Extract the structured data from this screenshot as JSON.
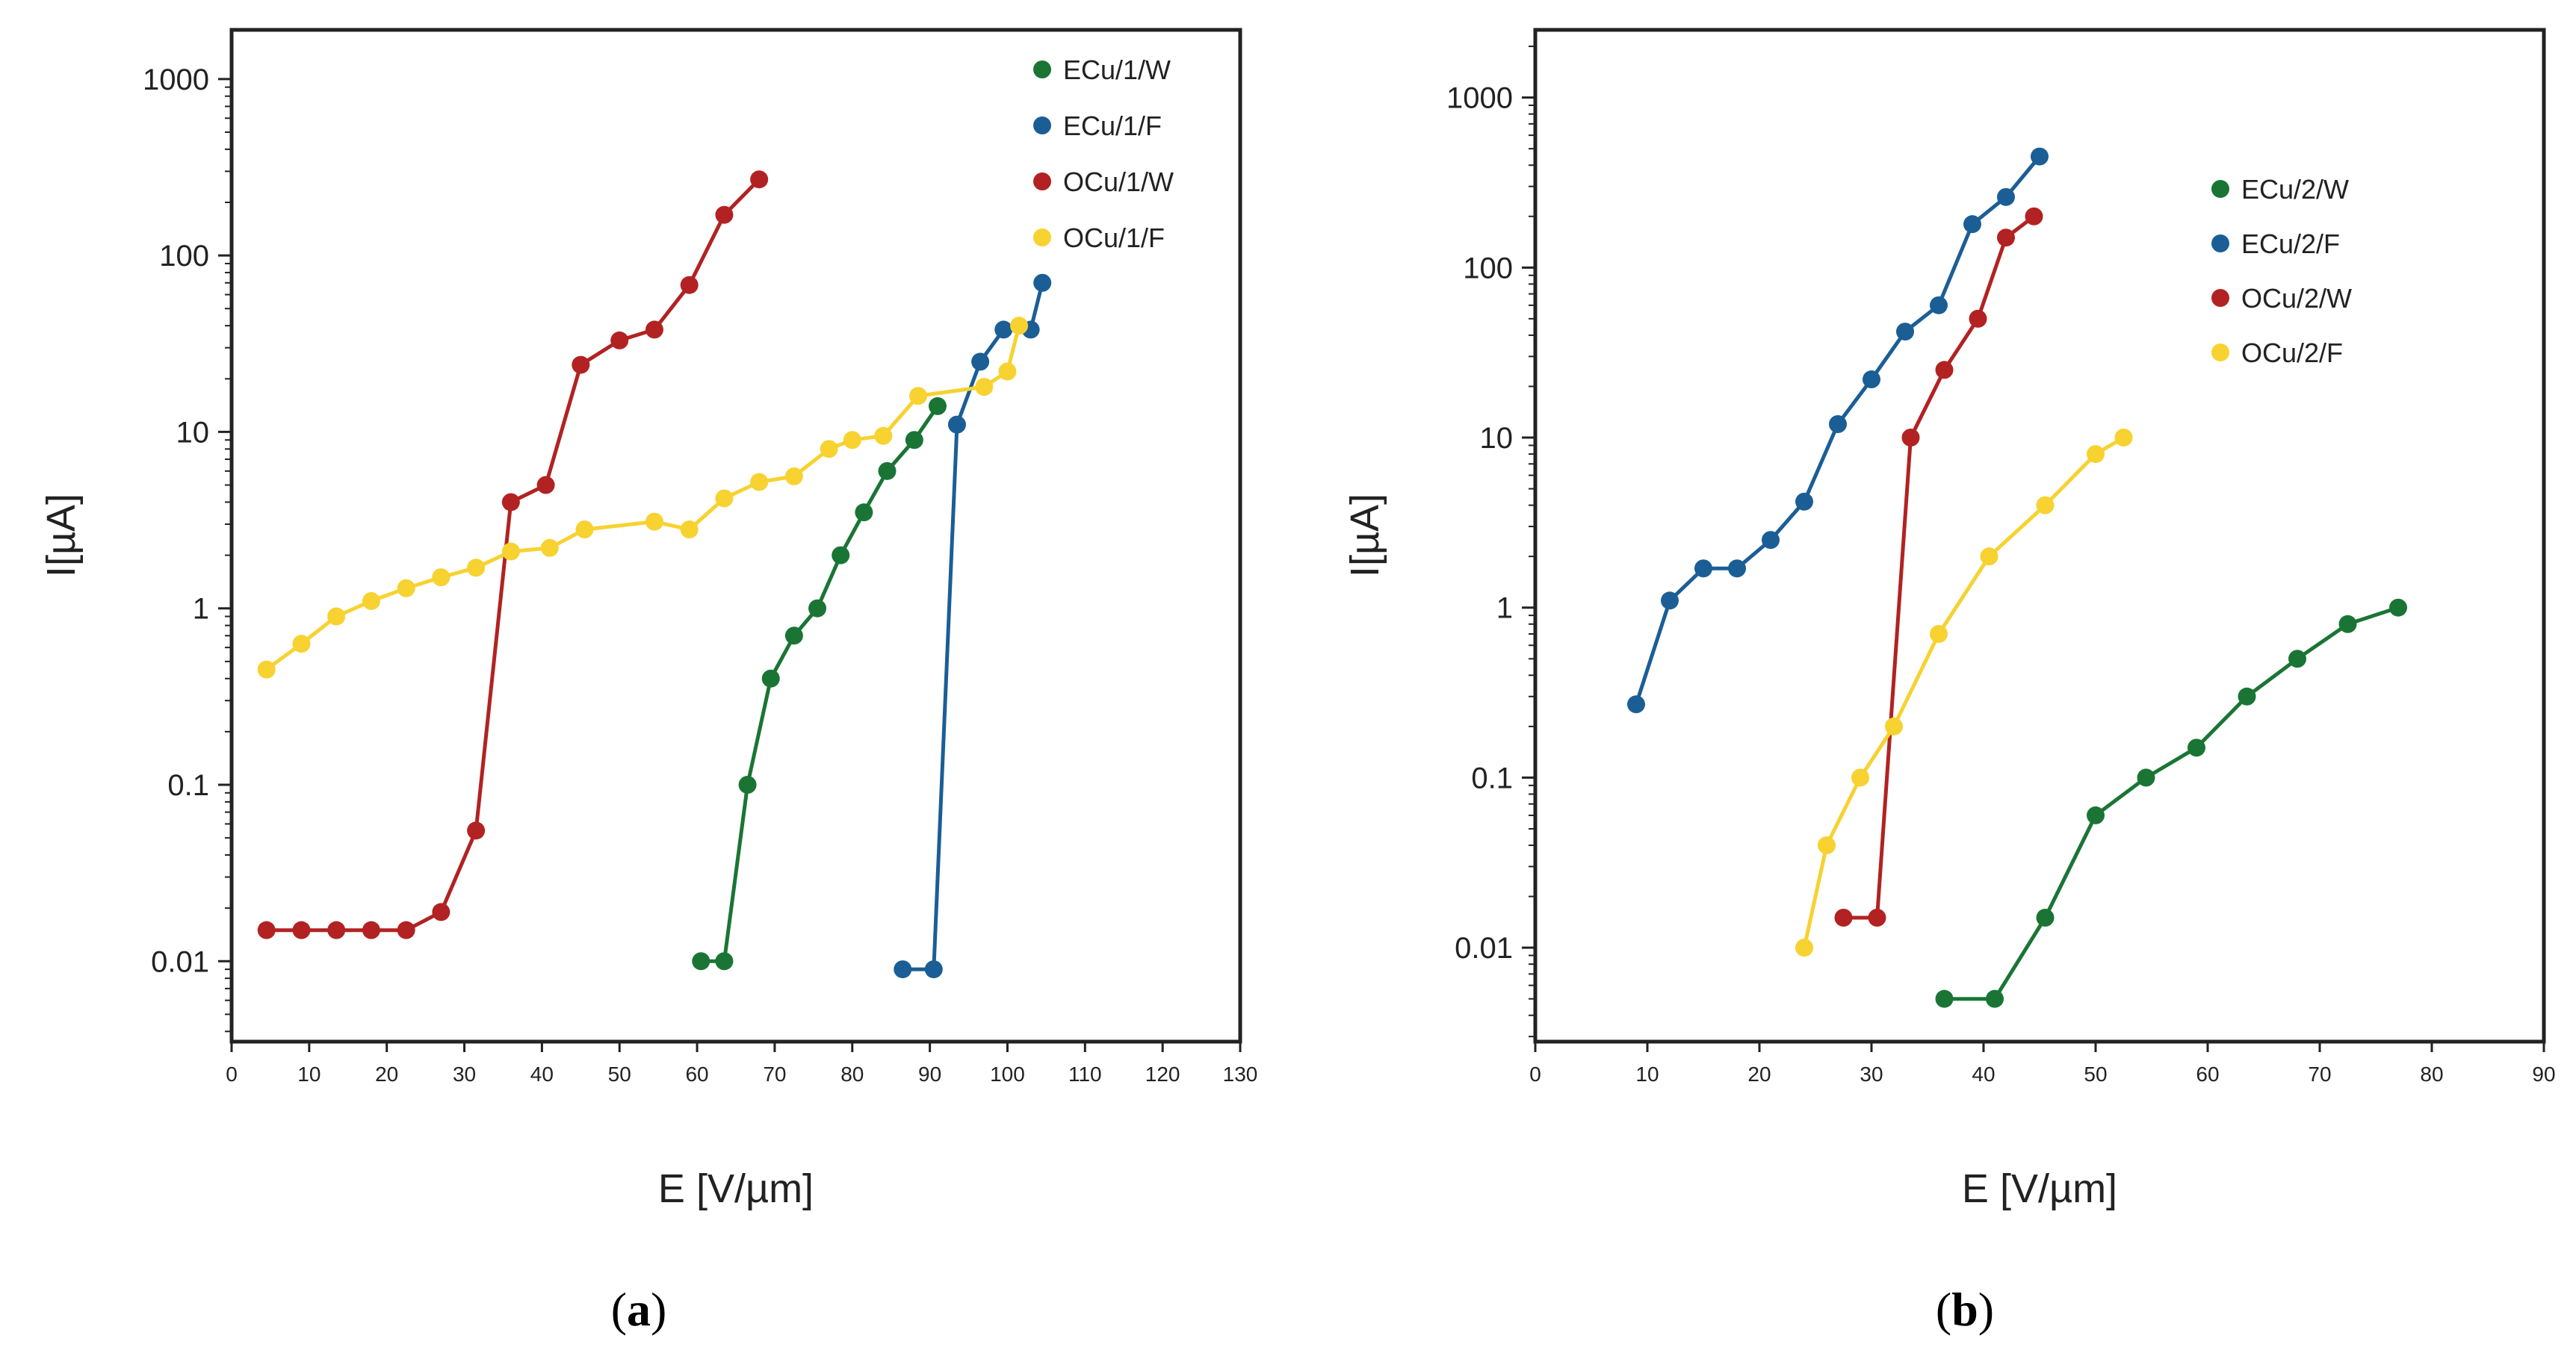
{
  "chart_data": [
    {
      "type": "line",
      "panel_label": "a",
      "xlabel": "E [V/µm]",
      "ylabel": "I[µA]",
      "yscale": "log",
      "xlim": [
        0,
        130
      ],
      "ylim": [
        0.0035,
        1900
      ],
      "xticks": [
        "0",
        "10",
        "20",
        "30",
        "40",
        "50",
        "60",
        "70",
        "80",
        "90",
        "100",
        "110",
        "120",
        "130"
      ],
      "yticks": [
        "0.01",
        "0.1",
        "1",
        "10",
        "100",
        "1000"
      ],
      "legend_position": "top-right",
      "series": [
        {
          "name": "ECu/1/W",
          "color": "#1a7535",
          "x": [
            60.5,
            63.5,
            66.5,
            69.5,
            72.5,
            75.5,
            78.5,
            81.5,
            84.5,
            88,
            91
          ],
          "y": [
            0.01,
            0.01,
            0.1,
            0.4,
            0.7,
            1.0,
            2.0,
            3.5,
            6.0,
            9.0,
            14.0
          ]
        },
        {
          "name": "ECu/1/F",
          "color": "#1b5e96",
          "x": [
            86.5,
            90.5,
            93.5,
            96.5,
            99.5,
            103,
            104.5
          ],
          "y": [
            0.009,
            0.009,
            11,
            25,
            38,
            38,
            70
          ]
        },
        {
          "name": "OCu/1/W",
          "color": "#b22222",
          "x": [
            4.5,
            9,
            13.5,
            18,
            22.5,
            27,
            31.5,
            36,
            40.5,
            45,
            50,
            54.5,
            59,
            63.5,
            68
          ],
          "y": [
            0.015,
            0.015,
            0.015,
            0.015,
            0.015,
            0.019,
            0.055,
            4.0,
            5.0,
            24,
            33,
            38,
            68,
            170,
            270
          ]
        },
        {
          "name": "OCu/1/F",
          "color": "#f7d230",
          "x": [
            4.5,
            9,
            13.5,
            18,
            22.5,
            27,
            31.5,
            36,
            41,
            45.5,
            54.5,
            59,
            63.5,
            68,
            72.5,
            77,
            80,
            84,
            88.5,
            97,
            100,
            101.5
          ],
          "y": [
            0.45,
            0.63,
            0.9,
            1.1,
            1.3,
            1.5,
            1.7,
            2.1,
            2.2,
            2.8,
            3.1,
            2.8,
            4.2,
            5.2,
            5.6,
            8.0,
            9.0,
            9.5,
            16,
            18,
            22,
            40
          ]
        }
      ]
    },
    {
      "type": "line",
      "panel_label": "b",
      "xlabel": "E [V/µm]",
      "ylabel": "I[µA]",
      "yscale": "log",
      "xlim": [
        0,
        90
      ],
      "ylim": [
        0.0028,
        2500
      ],
      "xticks": [
        "0",
        "10",
        "20",
        "30",
        "40",
        "50",
        "60",
        "70",
        "80",
        "90"
      ],
      "yticks": [
        "0.01",
        "0.1",
        "1",
        "10",
        "100",
        "1000"
      ],
      "legend_position": "top-right",
      "series": [
        {
          "name": "ECu/2/W",
          "color": "#1a7535",
          "x": [
            36.5,
            41,
            45.5,
            50,
            54.5,
            59,
            63.5,
            68,
            72.5,
            77
          ],
          "y": [
            0.005,
            0.005,
            0.015,
            0.06,
            0.1,
            0.15,
            0.3,
            0.5,
            0.8,
            1.0
          ]
        },
        {
          "name": "ECu/2/F",
          "color": "#1b5e96",
          "x": [
            9,
            12,
            15,
            18,
            21,
            24,
            27,
            30,
            33,
            36,
            39,
            42,
            45
          ],
          "y": [
            0.27,
            1.1,
            1.7,
            1.7,
            2.5,
            4.2,
            12,
            22,
            42,
            60,
            180,
            260,
            450
          ]
        },
        {
          "name": "OCu/2/W",
          "color": "#b22222",
          "x": [
            27.5,
            30.5,
            33.5,
            36.5,
            39.5,
            42,
            44.5
          ],
          "y": [
            0.015,
            0.015,
            10,
            25,
            50,
            150,
            200
          ]
        },
        {
          "name": "OCu/2/F",
          "color": "#f7d230",
          "x": [
            24,
            26,
            29,
            32,
            36,
            40.5,
            45.5,
            50,
            52.5
          ],
          "y": [
            0.01,
            0.04,
            0.1,
            0.2,
            0.7,
            2.0,
            4.0,
            8.0,
            10.0
          ]
        }
      ]
    }
  ]
}
